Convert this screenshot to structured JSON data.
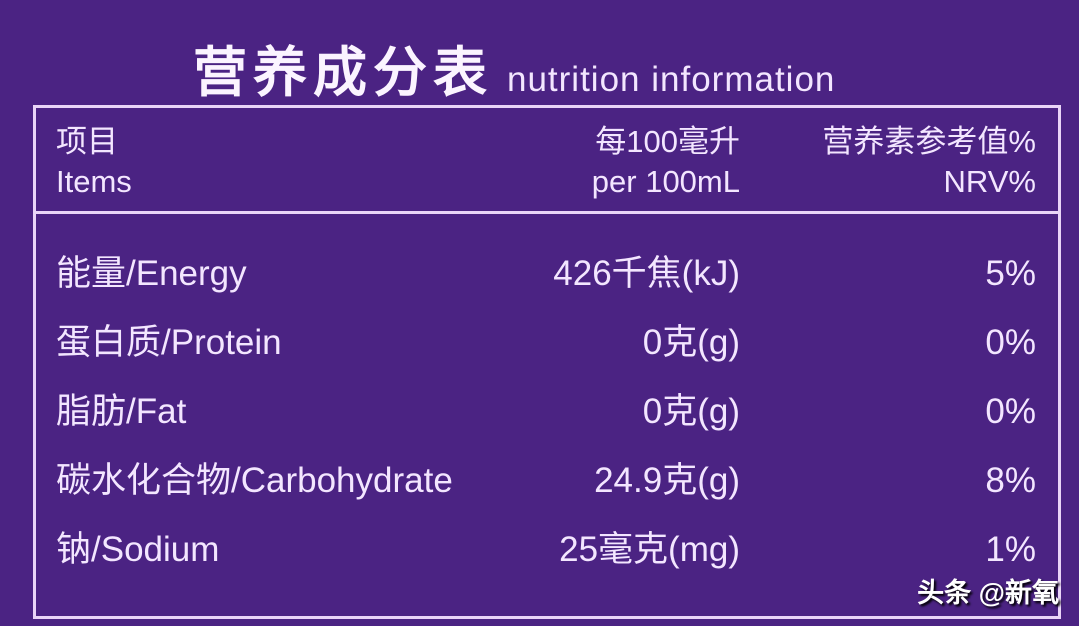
{
  "title": {
    "cn": "营养成分表",
    "en": "nutrition information"
  },
  "header": {
    "items_cn": "项目",
    "items_en": "Items",
    "per_cn": "每100毫升",
    "per_en": "per 100mL",
    "nrv_cn": "营养素参考值%",
    "nrv_en": "NRV%"
  },
  "rows": [
    {
      "name": "能量/Energy",
      "value": "426千焦(kJ)",
      "nrv": "5%"
    },
    {
      "name": "蛋白质/Protein",
      "value": "0克(g)",
      "nrv": "0%"
    },
    {
      "name": "脂肪/Fat",
      "value": "0克(g)",
      "nrv": "0%"
    },
    {
      "name": "碳水化合物/Carbohydrate",
      "value": "24.9克(g)",
      "nrv": "8%"
    },
    {
      "name": "钠/Sodium",
      "value": "25毫克(mg)",
      "nrv": "1%"
    }
  ],
  "watermark": "头条 @新氧",
  "colors": {
    "background": "#4b2383",
    "text": "#f3e6ff",
    "border": "#e9d4f7"
  }
}
